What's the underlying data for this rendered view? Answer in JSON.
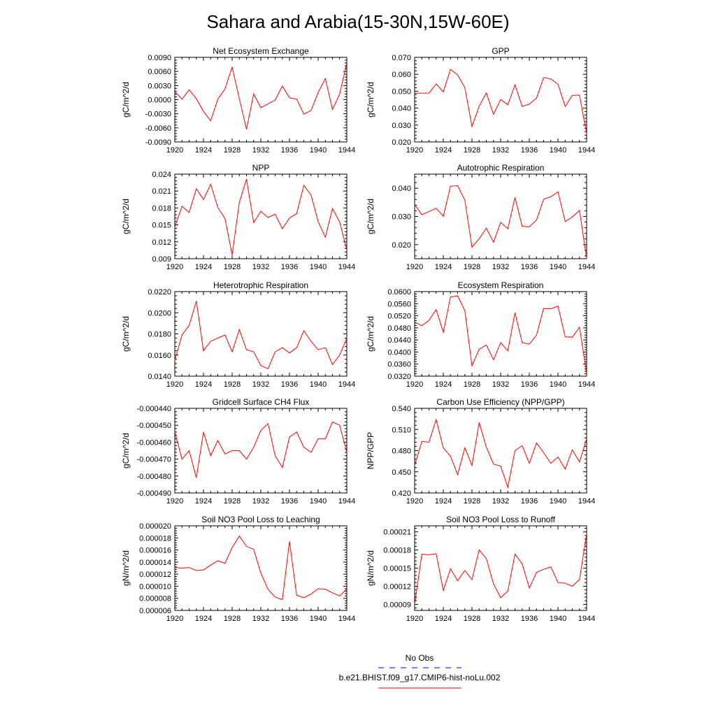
{
  "figure": {
    "title": "Sahara and Arabia(15-30N,15W-60E)",
    "line_color": "#ff0000",
    "obs_color": "#0000ff"
  },
  "legend": {
    "obs_label": "No Obs",
    "model_label": "b.e21.BHIST.f09_g17.CMIP6-hist-noLu.002"
  },
  "chart_data": [
    {
      "type": "line",
      "title": "Net Ecosystem Exchange",
      "ylabel": "gC/m^2/d",
      "xlim": [
        1920,
        1944
      ],
      "ylim": [
        -0.009,
        0.009
      ],
      "xticks": [
        "1920",
        "1924",
        "1928",
        "1932",
        "1936",
        "1940",
        "1944"
      ],
      "yticks": [
        "-0.0090",
        "-0.0060",
        "-0.0030",
        "0.0000",
        "0.0030",
        "0.0060",
        "0.0090"
      ],
      "x": [
        1920,
        1921,
        1922,
        1923,
        1924,
        1925,
        1926,
        1927,
        1928,
        1929,
        1930,
        1931,
        1932,
        1933,
        1934,
        1935,
        1936,
        1937,
        1938,
        1939,
        1940,
        1941,
        1942,
        1943,
        1944
      ],
      "series": [
        {
          "values": [
            0.0017,
            0.0001,
            0.0021,
            0.0002,
            -0.0025,
            -0.0045,
            0.0001,
            0.0023,
            0.0069,
            0.0002,
            -0.0063,
            0.0012,
            -0.0017,
            -0.0009,
            -0.0001,
            0.0029,
            0.0004,
            0.0001,
            -0.0031,
            -0.0023,
            0.0015,
            0.0045,
            -0.0021,
            0.0012,
            0.0078
          ]
        }
      ]
    },
    {
      "type": "line",
      "title": "GPP",
      "ylabel": "gC/m^2/d",
      "xlim": [
        1920,
        1944
      ],
      "ylim": [
        0.02,
        0.07
      ],
      "xticks": [
        "1920",
        "1924",
        "1928",
        "1932",
        "1936",
        "1940",
        "1944"
      ],
      "yticks": [
        "0.020",
        "0.030",
        "0.040",
        "0.050",
        "0.060",
        "0.070"
      ],
      "x": [
        1920,
        1921,
        1922,
        1923,
        1924,
        1925,
        1926,
        1927,
        1928,
        1929,
        1930,
        1931,
        1932,
        1933,
        1934,
        1935,
        1936,
        1937,
        1938,
        1939,
        1940,
        1941,
        1942,
        1943,
        1944
      ],
      "series": [
        {
          "values": [
            0.0488,
            0.0488,
            0.0489,
            0.0543,
            0.0496,
            0.0629,
            0.0596,
            0.0521,
            0.0291,
            0.0411,
            0.049,
            0.0363,
            0.0451,
            0.042,
            0.0537,
            0.041,
            0.0423,
            0.0459,
            0.0581,
            0.0572,
            0.0541,
            0.041,
            0.0475,
            0.0477,
            0.0249
          ]
        }
      ]
    },
    {
      "type": "line",
      "title": "NPP",
      "ylabel": "gC/m^2/d",
      "xlim": [
        1920,
        1944
      ],
      "ylim": [
        0.009,
        0.024
      ],
      "xticks": [
        "1920",
        "1924",
        "1928",
        "1932",
        "1936",
        "1940",
        "1944"
      ],
      "yticks": [
        "0.009",
        "0.012",
        "0.015",
        "0.018",
        "0.021",
        "0.024"
      ],
      "x": [
        1920,
        1921,
        1922,
        1923,
        1924,
        1925,
        1926,
        1927,
        1928,
        1929,
        1930,
        1931,
        1932,
        1933,
        1934,
        1935,
        1936,
        1937,
        1938,
        1939,
        1940,
        1941,
        1942,
        1943,
        1944
      ],
      "series": [
        {
          "values": [
            0.0146,
            0.0183,
            0.0172,
            0.0214,
            0.0195,
            0.0222,
            0.0181,
            0.0161,
            0.0097,
            0.019,
            0.0231,
            0.0154,
            0.0174,
            0.0163,
            0.0169,
            0.0143,
            0.0162,
            0.017,
            0.022,
            0.0203,
            0.0156,
            0.0128,
            0.0179,
            0.0155,
            0.0105
          ]
        }
      ]
    },
    {
      "type": "line",
      "title": "Autotrophic Respiration",
      "ylabel": "gC/m^2/d",
      "xlim": [
        1920,
        1944
      ],
      "ylim": [
        0.015,
        0.045
      ],
      "xticks": [
        "1920",
        "1924",
        "1928",
        "1932",
        "1936",
        "1940",
        "1944"
      ],
      "yticks": [
        "0.020",
        "0.030",
        "0.040"
      ],
      "x": [
        1920,
        1921,
        1922,
        1923,
        1924,
        1925,
        1926,
        1927,
        1928,
        1929,
        1930,
        1931,
        1932,
        1933,
        1934,
        1935,
        1936,
        1937,
        1938,
        1939,
        1940,
        1941,
        1942,
        1943,
        1944
      ],
      "series": [
        {
          "values": [
            0.0342,
            0.0306,
            0.0317,
            0.0329,
            0.03,
            0.0407,
            0.0409,
            0.0358,
            0.0191,
            0.0221,
            0.0258,
            0.0208,
            0.0279,
            0.0256,
            0.0367,
            0.0265,
            0.0263,
            0.0287,
            0.0361,
            0.037,
            0.0387,
            0.0282,
            0.0298,
            0.0321,
            0.0151
          ]
        }
      ]
    },
    {
      "type": "line",
      "title": "Heterotrophic Respiration",
      "ylabel": "gC/m^2/d",
      "xlim": [
        1920,
        1944
      ],
      "ylim": [
        0.014,
        0.022
      ],
      "xticks": [
        "1920",
        "1924",
        "1928",
        "1932",
        "1936",
        "1940",
        "1944"
      ],
      "yticks": [
        "0.0140",
        "0.0160",
        "0.0180",
        "0.0200",
        "0.0220"
      ],
      "x": [
        1920,
        1921,
        1922,
        1923,
        1924,
        1925,
        1926,
        1927,
        1928,
        1929,
        1930,
        1931,
        1932,
        1933,
        1934,
        1935,
        1936,
        1937,
        1938,
        1939,
        1940,
        1941,
        1942,
        1943,
        1944
      ],
      "series": [
        {
          "values": [
            0.0155,
            0.0179,
            0.0188,
            0.0211,
            0.0164,
            0.0173,
            0.0176,
            0.0179,
            0.0163,
            0.0184,
            0.0165,
            0.0163,
            0.015,
            0.0147,
            0.0163,
            0.0167,
            0.0162,
            0.0167,
            0.0183,
            0.0173,
            0.0165,
            0.0167,
            0.0151,
            0.016,
            0.0176
          ]
        }
      ]
    },
    {
      "type": "line",
      "title": "Ecosystem Respiration",
      "ylabel": "gC/m^2/d",
      "xlim": [
        1920,
        1944
      ],
      "ylim": [
        0.032,
        0.06
      ],
      "xticks": [
        "1920",
        "1924",
        "1928",
        "1932",
        "1936",
        "1940",
        "1944"
      ],
      "yticks": [
        "0.0320",
        "0.0360",
        "0.0400",
        "0.0440",
        "0.0480",
        "0.0520",
        "0.0560",
        "0.0600"
      ],
      "x": [
        1920,
        1921,
        1922,
        1923,
        1924,
        1925,
        1926,
        1927,
        1928,
        1929,
        1930,
        1931,
        1932,
        1933,
        1934,
        1935,
        1936,
        1937,
        1938,
        1939,
        1940,
        1941,
        1942,
        1943,
        1944
      ],
      "series": [
        {
          "values": [
            0.0499,
            0.0487,
            0.0505,
            0.054,
            0.0465,
            0.0582,
            0.0586,
            0.0537,
            0.0354,
            0.0409,
            0.0423,
            0.0374,
            0.0431,
            0.0404,
            0.053,
            0.0431,
            0.0426,
            0.0456,
            0.0544,
            0.0543,
            0.0552,
            0.045,
            0.0449,
            0.0482,
            0.0328
          ]
        }
      ]
    },
    {
      "type": "line",
      "title": "Gridcell Surface CH4 Flux",
      "ylabel": "gC/m^2/d",
      "xlim": [
        1920,
        1944
      ],
      "ylim": [
        -0.00049,
        -0.00044
      ],
      "xticks": [
        "1920",
        "1924",
        "1928",
        "1932",
        "1936",
        "1940",
        "1944"
      ],
      "yticks": [
        "-0.000490",
        "-0.000480",
        "-0.000470",
        "-0.000460",
        "-0.000450",
        "-0.000440"
      ],
      "x": [
        1920,
        1921,
        1922,
        1923,
        1924,
        1925,
        1926,
        1927,
        1928,
        1929,
        1930,
        1931,
        1932,
        1933,
        1934,
        1935,
        1936,
        1937,
        1938,
        1939,
        1940,
        1941,
        1942,
        1943,
        1944
      ],
      "series": [
        {
          "values": [
            -0.000454,
            -0.00047,
            -0.000465,
            -0.000481,
            -0.000454,
            -0.000468,
            -0.000459,
            -0.000467,
            -0.000465,
            -0.000465,
            -0.00047,
            -0.000463,
            -0.000453,
            -0.000449,
            -0.000468,
            -0.000475,
            -0.000457,
            -0.000454,
            -0.000463,
            -0.000466,
            -0.000458,
            -0.000458,
            -0.000448,
            -0.00045,
            -0.000466
          ]
        }
      ]
    },
    {
      "type": "line",
      "title": "Carbon Use Efficiency (NPP/GPP)",
      "ylabel": "NPP/GPP",
      "xlim": [
        1920,
        1944
      ],
      "ylim": [
        0.42,
        0.54
      ],
      "xticks": [
        "1920",
        "1924",
        "1928",
        "1932",
        "1936",
        "1940",
        "1944"
      ],
      "yticks": [
        "0.420",
        "0.450",
        "0.480",
        "0.510",
        "0.540"
      ],
      "x": [
        1920,
        1921,
        1922,
        1923,
        1924,
        1925,
        1926,
        1927,
        1928,
        1929,
        1930,
        1931,
        1932,
        1933,
        1934,
        1935,
        1936,
        1937,
        1938,
        1939,
        1940,
        1941,
        1942,
        1943,
        1944
      ],
      "series": [
        {
          "values": [
            0.459,
            0.493,
            0.492,
            0.524,
            0.484,
            0.472,
            0.446,
            0.484,
            0.459,
            0.52,
            0.485,
            0.461,
            0.458,
            0.428,
            0.48,
            0.487,
            0.462,
            0.491,
            0.477,
            0.462,
            0.471,
            0.454,
            0.481,
            0.464,
            0.497
          ]
        }
      ]
    },
    {
      "type": "line",
      "title": "Soil NO3 Pool Loss to Leaching",
      "ylabel": "gN/m^2/d",
      "xlim": [
        1920,
        1944
      ],
      "ylim": [
        6e-06,
        2e-05
      ],
      "xticks": [
        "1920",
        "1924",
        "1928",
        "1932",
        "1936",
        "1940",
        "1944"
      ],
      "yticks": [
        "0.000006",
        "0.000008",
        "0.000010",
        "0.000012",
        "0.000014",
        "0.000016",
        "0.000018",
        "0.000020"
      ],
      "x": [
        1920,
        1921,
        1922,
        1923,
        1924,
        1925,
        1926,
        1927,
        1928,
        1929,
        1930,
        1931,
        1932,
        1933,
        1934,
        1935,
        1936,
        1937,
        1938,
        1939,
        1940,
        1941,
        1942,
        1943,
        1944
      ],
      "series": [
        {
          "values": [
            1.31e-05,
            1.3e-05,
            1.31e-05,
            1.26e-05,
            1.27e-05,
            1.35e-05,
            1.42e-05,
            1.38e-05,
            1.64e-05,
            1.83e-05,
            1.66e-05,
            1.61e-05,
            1.22e-05,
            9.5e-06,
            8.2e-06,
            7.8e-06,
            1.74e-05,
            8.5e-06,
            8.1e-06,
            8.7e-06,
            9.6e-06,
            9.5e-06,
            8.9e-06,
            8.4e-06,
            9.6e-06
          ]
        }
      ]
    },
    {
      "type": "line",
      "title": "Soil NO3 Pool Loss to Runoff",
      "ylabel": "gN/m^2/d",
      "xlim": [
        1920,
        1944
      ],
      "ylim": [
        8e-05,
        0.00022
      ],
      "xticks": [
        "1920",
        "1924",
        "1928",
        "1932",
        "1936",
        "1940",
        "1944"
      ],
      "yticks": [
        "0.00009",
        "0.00012",
        "0.00015",
        "0.00018",
        "0.00021"
      ],
      "x": [
        1920,
        1921,
        1922,
        1923,
        1924,
        1925,
        1926,
        1927,
        1928,
        1929,
        1930,
        1931,
        1932,
        1933,
        1934,
        1935,
        1936,
        1937,
        1938,
        1939,
        1940,
        1941,
        1942,
        1943,
        1944
      ],
      "series": [
        {
          "values": [
            9e-05,
            0.000173,
            0.000172,
            0.000174,
            0.000113,
            0.000149,
            0.000129,
            0.000146,
            0.000131,
            0.00018,
            0.000166,
            0.000124,
            0.000101,
            0.000112,
            0.000173,
            0.000157,
            0.000117,
            0.000143,
            0.000148,
            0.000152,
            0.000126,
            0.000125,
            0.00012,
            0.000131,
            0.000207
          ]
        }
      ]
    }
  ]
}
